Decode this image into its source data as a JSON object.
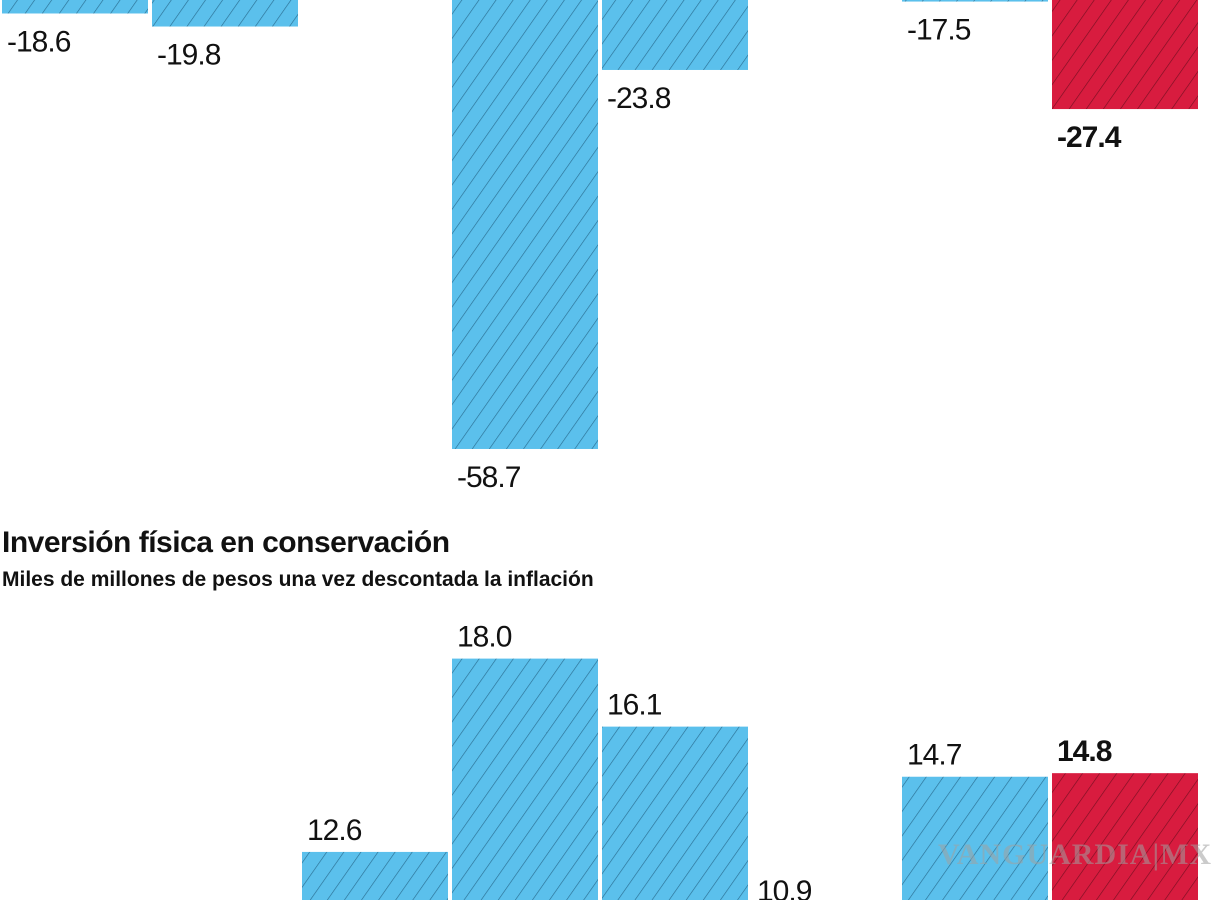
{
  "colors": {
    "bar": "#5bc0ec",
    "hatch": "#2a6f93",
    "highlight": "#d81c3f"
  },
  "chart_data": [
    {
      "type": "bar",
      "title": "",
      "values": [
        -18.6,
        -19.8,
        null,
        -58.7,
        -23.8,
        null,
        -17.5,
        -27.4
      ],
      "labels": [
        "-18.6",
        "-19.8",
        "",
        "-58.7",
        "-23.8",
        "",
        "-17.5",
        "-27.4"
      ],
      "highlight_index": 7,
      "hatched": true,
      "grid": false
    },
    {
      "type": "bar",
      "title": "Inversión física en conservación",
      "subtitle": "Miles de millones de pesos una vez descontada la inflación",
      "values": [
        null,
        null,
        12.6,
        18.0,
        16.1,
        10.9,
        14.7,
        14.8
      ],
      "labels": [
        "",
        "",
        "12.6",
        "18.0",
        "16.1",
        "10.9",
        "14.7",
        "14.8"
      ],
      "highlight_index": 7,
      "hatched": true,
      "grid": false
    }
  ],
  "watermark": "VANGUARDIA|MX"
}
